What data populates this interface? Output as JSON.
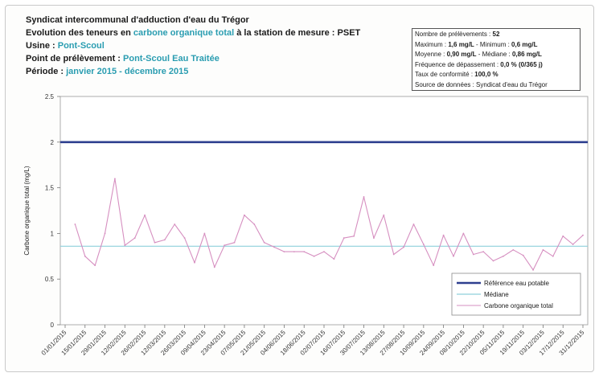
{
  "header": {
    "line1": "Syndicat intercommunal d'adduction d'eau du Trégor",
    "line2_prefix": "Evolution des teneurs en ",
    "line2_highlight": "carbone organique total",
    "line2_suffix": " à la station de mesure : PSET",
    "usine_label": "Usine : ",
    "usine_value": "Pont-Scoul",
    "point_label": "Point de prélèvement : ",
    "point_value": "Pont-Scoul Eau Traitée",
    "periode_label": "Période : ",
    "periode_value": "janvier 2015 - décembre 2015"
  },
  "stats": {
    "r1_label": "Nombre de prélèvements : ",
    "r1_value": "52",
    "r2_a": "Maximum : ",
    "r2_b": "1,6 mg/L",
    "r2_c": " - Minimum : ",
    "r2_d": "0,6 mg/L",
    "r3_a": "Moyenne : ",
    "r3_b": "0,90 mg/L",
    "r3_c": " - Médiane : ",
    "r3_d": "0,86 mg/L",
    "r4_a": "Fréquence de dépassement : ",
    "r4_b": "0,0 % (0/365 j)",
    "r5_a": "Taux de conformité : ",
    "r5_b": "100,0 %",
    "r6_a": "Source de données : Syndicat d'eau du Trégor"
  },
  "chart_data": {
    "type": "line",
    "ylabel": "Carbone organique total (mg/L)",
    "ylim": [
      0,
      2.5
    ],
    "yticks": [
      "0",
      "0.5",
      "1",
      "1.5",
      "2",
      "2.5"
    ],
    "ytick_values": [
      0,
      0.5,
      1,
      1.5,
      2,
      2.5
    ],
    "x_tick_labels": [
      "01/01/2015",
      "15/01/2015",
      "29/01/2015",
      "12/02/2015",
      "26/02/2015",
      "12/03/2015",
      "26/03/2015",
      "09/04/2015",
      "23/04/2015",
      "07/05/2015",
      "21/05/2015",
      "04/06/2015",
      "18/06/2015",
      "02/07/2015",
      "16/07/2015",
      "30/07/2015",
      "13/08/2015",
      "27/08/2015",
      "10/09/2015",
      "24/09/2015",
      "08/10/2015",
      "22/10/2015",
      "05/11/2015",
      "19/11/2015",
      "03/12/2015",
      "17/12/2015",
      "31/12/2015"
    ],
    "reference_value": 2.0,
    "median_value": 0.86,
    "series": [
      {
        "name": "Référence eau potable",
        "color": "#2e3f8f",
        "kind": "reference"
      },
      {
        "name": "Médiane",
        "color": "#8fd0dc",
        "kind": "median"
      },
      {
        "name": "Carbone organique total",
        "color": "#d68fc0",
        "kind": "measure",
        "x": [
          "08/01/2015",
          "15/01/2015",
          "22/01/2015",
          "29/01/2015",
          "05/02/2015",
          "12/02/2015",
          "19/02/2015",
          "26/02/2015",
          "05/03/2015",
          "12/03/2015",
          "19/03/2015",
          "26/03/2015",
          "02/04/2015",
          "09/04/2015",
          "16/04/2015",
          "23/04/2015",
          "30/04/2015",
          "07/05/2015",
          "14/05/2015",
          "21/05/2015",
          "28/05/2015",
          "04/06/2015",
          "11/06/2015",
          "18/06/2015",
          "25/06/2015",
          "02/07/2015",
          "09/07/2015",
          "16/07/2015",
          "23/07/2015",
          "30/07/2015",
          "06/08/2015",
          "13/08/2015",
          "20/08/2015",
          "27/08/2015",
          "03/09/2015",
          "10/09/2015",
          "17/09/2015",
          "24/09/2015",
          "01/10/2015",
          "08/10/2015",
          "15/10/2015",
          "22/10/2015",
          "29/10/2015",
          "05/11/2015",
          "12/11/2015",
          "19/11/2015",
          "26/11/2015",
          "03/12/2015",
          "10/12/2015",
          "17/12/2015",
          "24/12/2015",
          "31/12/2015"
        ],
        "values": [
          1.1,
          0.75,
          0.65,
          1.0,
          1.6,
          0.87,
          0.95,
          1.2,
          0.9,
          0.93,
          1.1,
          0.95,
          0.68,
          1.0,
          0.63,
          0.87,
          0.9,
          1.2,
          1.1,
          0.9,
          0.85,
          0.8,
          0.8,
          0.8,
          0.75,
          0.8,
          0.72,
          0.95,
          0.97,
          1.4,
          0.95,
          1.2,
          0.77,
          0.85,
          1.1,
          0.88,
          0.65,
          0.98,
          0.75,
          1.0,
          0.77,
          0.8,
          0.7,
          0.75,
          0.82,
          0.76,
          0.6,
          0.82,
          0.75,
          0.97,
          0.88,
          0.98
        ]
      }
    ]
  }
}
